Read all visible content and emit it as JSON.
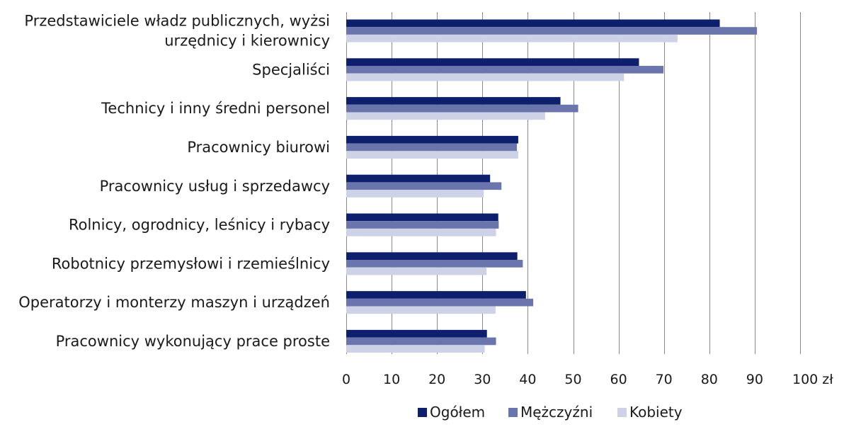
{
  "chart_data": {
    "type": "bar",
    "orientation": "horizontal",
    "categories": [
      [
        "Przedstawiciele władz publicznych, wyżsi",
        "urzędnicy i kierownicy"
      ],
      [
        "Specjaliści"
      ],
      [
        "Technicy i inny średni personel"
      ],
      [
        "Pracownicy biurowi"
      ],
      [
        "Pracownicy usług i sprzedawcy"
      ],
      [
        "Rolnicy, ogrodnicy, leśnicy i rybacy"
      ],
      [
        "Robotnicy przemysłowi i rzemieślnicy"
      ],
      [
        "Operatorzy i monterzy maszyn i urządzeń"
      ],
      [
        "Pracownicy wykonujący prace proste"
      ]
    ],
    "series": [
      {
        "name": "Ogółem",
        "color": "#0e1f6e",
        "values": [
          82.3,
          64.5,
          47.2,
          37.9,
          31.7,
          33.5,
          37.7,
          39.6,
          31.0
        ]
      },
      {
        "name": "Mężczyźni",
        "color": "#6a75ae",
        "values": [
          90.5,
          69.9,
          51.1,
          37.6,
          34.2,
          33.6,
          38.9,
          41.2,
          33.0
        ]
      },
      {
        "name": "Kobiety",
        "color": "#cdd2e6",
        "values": [
          73.0,
          61.2,
          43.8,
          37.9,
          30.3,
          33.0,
          30.9,
          32.9,
          30.5
        ]
      }
    ],
    "x_ticks": [
      "0",
      "10",
      "20",
      "30",
      "40",
      "50",
      "60",
      "70",
      "80",
      "90",
      "100 zł"
    ],
    "xlim": [
      0,
      100
    ],
    "grid": true,
    "legend_position": "bottom"
  }
}
